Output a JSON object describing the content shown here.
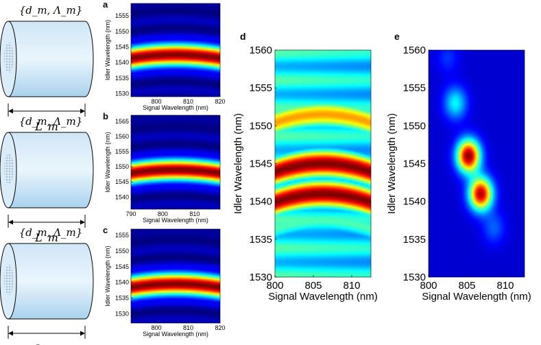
{
  "fibers": [
    {
      "param_label": "{d_m, Λ_m}",
      "length_label": "L_m"
    },
    {
      "param_label": "{d_m, Λ_m}",
      "length_label": "L_m"
    },
    {
      "param_label": "{d_m, Λ_m}",
      "length_label": "L_m"
    }
  ],
  "chart_data": [
    {
      "id": "a",
      "type": "heatmap",
      "panel_label": "a",
      "xlabel": "Signal Wavelength (nm)",
      "ylabel": "Idler Wavelength (nm)",
      "xlim": [
        792,
        820
      ],
      "ylim": [
        1529,
        1559
      ],
      "xticks": [
        800,
        810,
        820
      ],
      "yticks": [
        1530,
        1535,
        1540,
        1545,
        1550,
        1555
      ],
      "bands": [
        {
          "center_idler": 1542.5,
          "peak": 1.0
        }
      ],
      "curvature": "arched"
    },
    {
      "id": "b",
      "type": "heatmap",
      "panel_label": "b",
      "xlabel": "Signal Wavelength (nm)",
      "ylabel": "Idler Wavelength (nm)",
      "xlim": [
        790,
        818
      ],
      "ylim": [
        1536,
        1567
      ],
      "xticks": [
        790,
        800,
        810
      ],
      "yticks": [
        1540,
        1545,
        1550,
        1555,
        1560,
        1565
      ],
      "bands": [
        {
          "center_idler": 1549,
          "peak": 1.0
        }
      ],
      "curvature": "arched"
    },
    {
      "id": "c",
      "type": "heatmap",
      "panel_label": "c",
      "xlabel": "Signal Wavelength (nm)",
      "ylabel": "Idler Wavelength (nm)",
      "xlim": [
        792,
        820
      ],
      "ylim": [
        1527,
        1557
      ],
      "xticks": [
        800,
        810,
        820
      ],
      "yticks": [
        1530,
        1535,
        1540,
        1545,
        1550,
        1555
      ],
      "bands": [
        {
          "center_idler": 1539.5,
          "peak": 1.0
        }
      ],
      "curvature": "arched"
    },
    {
      "id": "d",
      "type": "heatmap",
      "panel_label": "d",
      "xlabel": "Signal Wavelength (nm)",
      "ylabel": "Idler Wavelength (nm)",
      "xlim": [
        800,
        812.5
      ],
      "ylim": [
        1530,
        1560
      ],
      "xticks": [
        800,
        805,
        810
      ],
      "yticks": [
        1530,
        1535,
        1540,
        1545,
        1550,
        1555,
        1560
      ],
      "bands": [
        {
          "center_idler": 1545,
          "peak": 1.0
        },
        {
          "center_idler": 1541,
          "peak": 1.0
        },
        {
          "center_idler": 1551.5,
          "peak": 0.72
        },
        {
          "center_idler": 1537.5,
          "peak": 0.45
        }
      ],
      "curvature": "arched"
    },
    {
      "id": "e",
      "type": "heatmap",
      "panel_label": "e",
      "xlabel": "Signal Wavelength (nm)",
      "ylabel": "Idler Wavelength (nm)",
      "xlim": [
        800,
        812.5
      ],
      "ylim": [
        1530,
        1560
      ],
      "xticks": [
        800,
        805,
        810
      ],
      "yticks": [
        1530,
        1535,
        1540,
        1545,
        1550,
        1555,
        1560
      ],
      "spots": [
        {
          "signal": 805.2,
          "idler": 1546,
          "peak": 1.0
        },
        {
          "signal": 806.8,
          "idler": 1541,
          "peak": 0.95
        },
        {
          "signal": 803.5,
          "idler": 1553,
          "peak": 0.32
        },
        {
          "signal": 808.5,
          "idler": 1536.5,
          "peak": 0.15
        },
        {
          "signal": 802.5,
          "idler": 1559,
          "peak": 0.1
        }
      ]
    }
  ]
}
